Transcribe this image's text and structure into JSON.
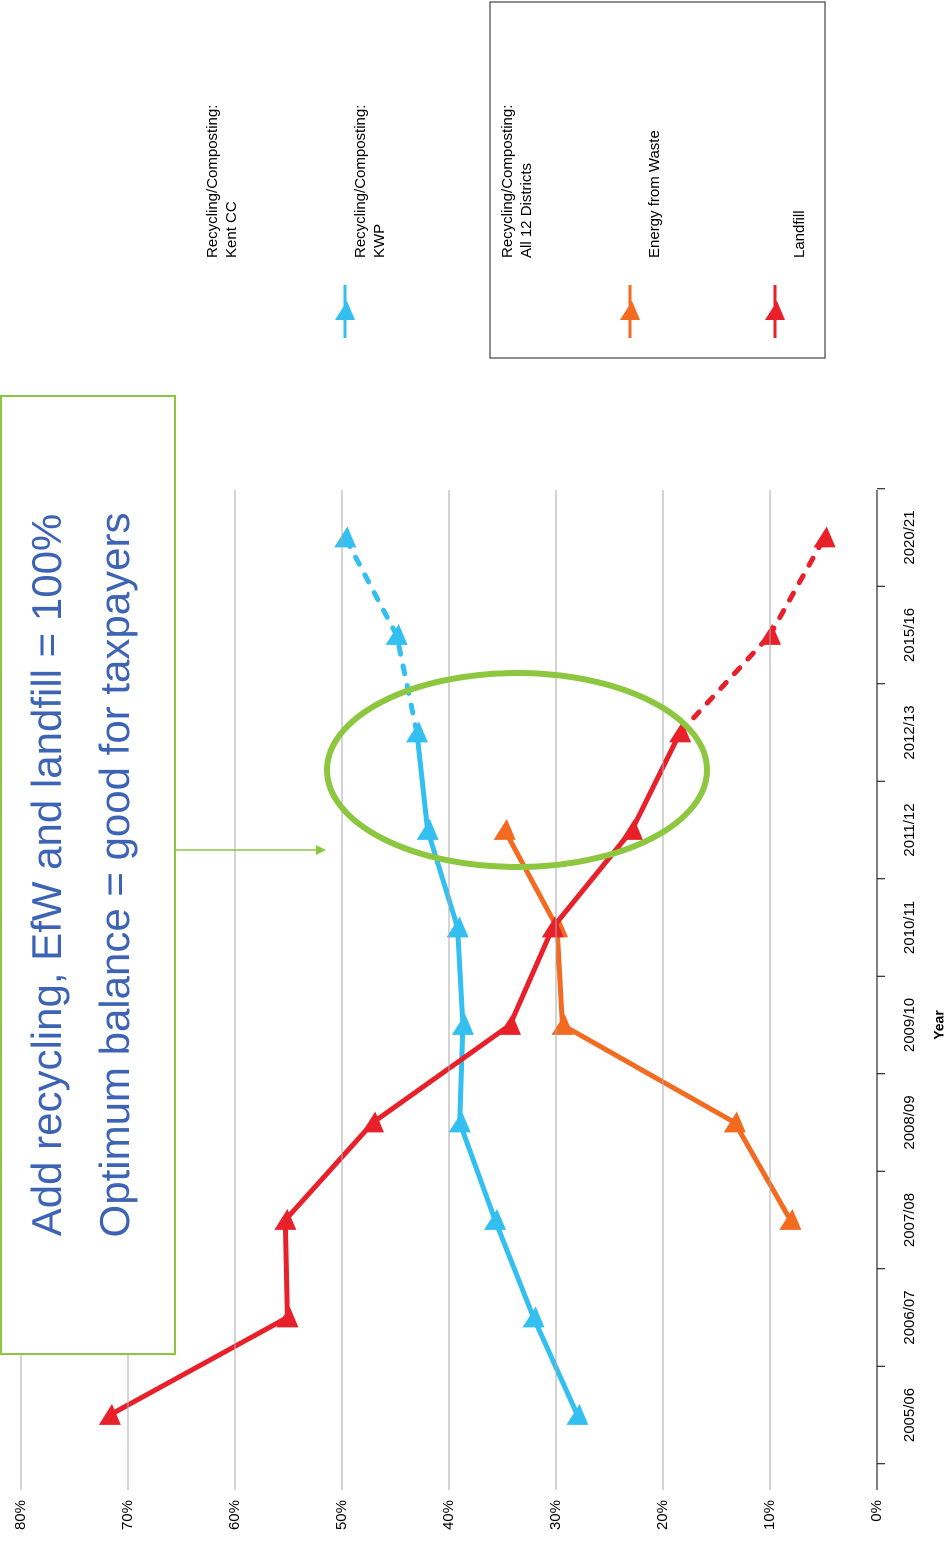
{
  "chart_data": {
    "type": "line",
    "orientation": "rotated",
    "x_label": "Year",
    "categories": [
      "2005/06",
      "2006/07",
      "2007/08",
      "2008/09",
      "2009/10",
      "2010/11",
      "2011/12",
      "2012/13",
      "2015/16",
      "2020/21"
    ],
    "dashed_from": "2012/13",
    "series": [
      {
        "name": "Recycling/Composting: Kent CC",
        "color": null,
        "values": [
          null,
          null,
          null,
          null,
          null,
          null,
          null,
          null,
          null,
          null
        ]
      },
      {
        "name": "Recycling/Composting: KWP",
        "color": "#33bfef",
        "values": [
          28,
          32.1,
          35.7,
          39,
          38.7,
          39.2,
          42,
          43,
          44.9,
          49.7
        ]
      },
      {
        "name": "Recycling/Composting: All 12 Districts",
        "color": null,
        "values": [
          null,
          null,
          null,
          null,
          null,
          null,
          null,
          null,
          null,
          null
        ]
      },
      {
        "name": "Energy from Waste",
        "color": "#f26b21",
        "values": [
          null,
          null,
          8.1,
          13.3,
          29.4,
          29.9,
          34.8,
          null,
          null,
          null
        ]
      },
      {
        "name": "Landfill",
        "color": "#e8202a",
        "values": [
          71.7,
          55.1,
          55.3,
          47.1,
          34.3,
          30.3,
          22.9,
          18.4,
          10,
          4.9
        ]
      }
    ],
    "ylim": [
      0,
      80
    ],
    "yticks": [
      {
        "value": 0,
        "label": "0%"
      },
      {
        "value": 10,
        "label": "10%"
      },
      {
        "value": 20,
        "label": "20%"
      },
      {
        "value": 30,
        "label": "30%"
      },
      {
        "value": 40,
        "label": "40%"
      },
      {
        "value": 50,
        "label": "50%"
      },
      {
        "value": 60,
        "label": "60%"
      },
      {
        "value": 70,
        "label": "70%"
      },
      {
        "value": 80,
        "label": "80%"
      }
    ],
    "grid": true,
    "annotations": [
      "Add recycling, EfW and landfill = 100%",
      "Optimum balance = good for taxpayers"
    ]
  }
}
